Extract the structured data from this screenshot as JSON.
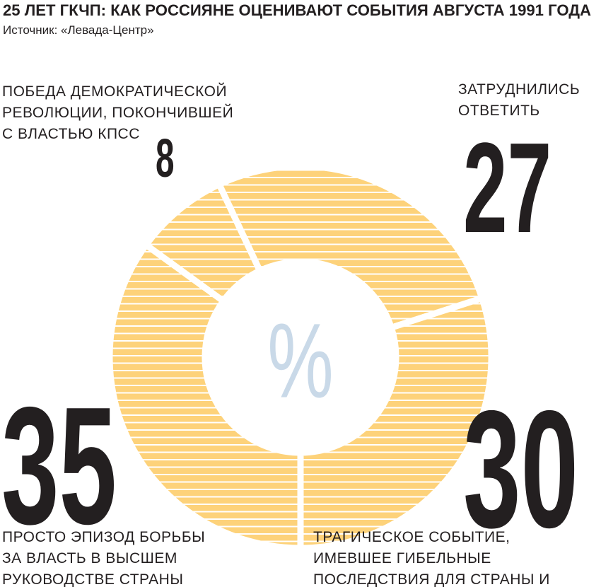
{
  "chart_data": {
    "type": "donut",
    "title": "25 ЛЕТ ГКЧП: КАК РОССИЯНЕ ОЦЕНИВАЮТ СОБЫТИЯ АВГУСТА 1991 ГОДА",
    "subtitle": "Источник: «Левада-Центр»",
    "center_label": "%",
    "categories": [
      "ПРОСТО ЭПИЗОД БОРЬБЫ ЗА ВЛАСТЬ В ВЫСШЕМ РУКОВОДСТВЕ СТРАНЫ",
      "ПОБЕДА ДЕМОКРАТИЧЕСКОЙ РЕВОЛЮЦИИ, ПОКОНЧИВШЕЙ С ВЛАСТЬЮ КПСС",
      "ЗАТРУДНИЛИСЬ ОТВЕТИТЬ",
      "ТРАГИЧЕСКОЕ СОБЫТИЕ, ИМЕВШЕЕ ГИБЕЛЬНЫЕ ПОСЛЕДСТВИЯ ДЛЯ СТРАНЫ И НАРОДА"
    ],
    "values": [
      35,
      8,
      27,
      30
    ],
    "color": "#fdd27a"
  }
}
